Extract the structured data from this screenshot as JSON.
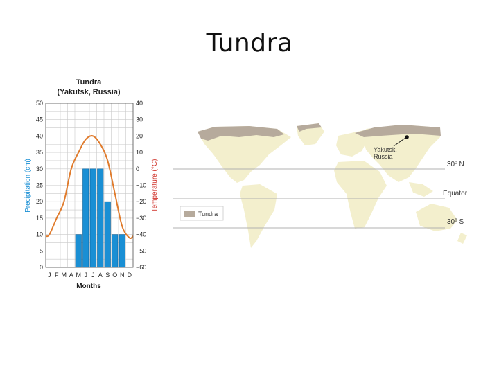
{
  "slide": {
    "title": "Tundra"
  },
  "chart_data": {
    "type": "bar",
    "title": "Tundra",
    "subtitle": "(Yakutsk, Russia)",
    "xlabel": "Months",
    "categories": [
      "J",
      "F",
      "M",
      "A",
      "M",
      "J",
      "J",
      "A",
      "S",
      "O",
      "N",
      "D"
    ],
    "series": [
      {
        "name": "Precipitation",
        "type": "bar",
        "axis": "left",
        "color": "#1a8fd4",
        "values": [
          0,
          0,
          0,
          0,
          10,
          30,
          30,
          30,
          20,
          10,
          10,
          0
        ]
      },
      {
        "name": "Temperature",
        "type": "line",
        "axis": "right",
        "color": "#e07b2c",
        "values": [
          -40,
          -30,
          -20,
          0,
          10,
          18,
          20,
          15,
          5,
          -15,
          -35,
          -42
        ]
      }
    ],
    "y_left": {
      "label": "Precipitation (cm)",
      "range": [
        0,
        50
      ],
      "ticks": [
        "0",
        "5",
        "10",
        "15",
        "20",
        "25",
        "30",
        "35",
        "40",
        "45",
        "50"
      ],
      "color": "#1a8fd4"
    },
    "y_right": {
      "label": "Temperature (°C)",
      "range": [
        -60,
        40
      ],
      "ticks": [
        "−60",
        "−50",
        "−40",
        "−30",
        "−20",
        "−10",
        "0",
        "10",
        "20",
        "30",
        "40"
      ],
      "color": "#d0342c"
    },
    "grid": true
  },
  "map": {
    "marker_label": [
      "Yakutsk,",
      "Russia"
    ],
    "lines": [
      "30º N",
      "Equator",
      "30º S"
    ],
    "legend_label": "Tundra",
    "land_color": "#f3efcd",
    "tundra_color": "#b6aa9c"
  }
}
